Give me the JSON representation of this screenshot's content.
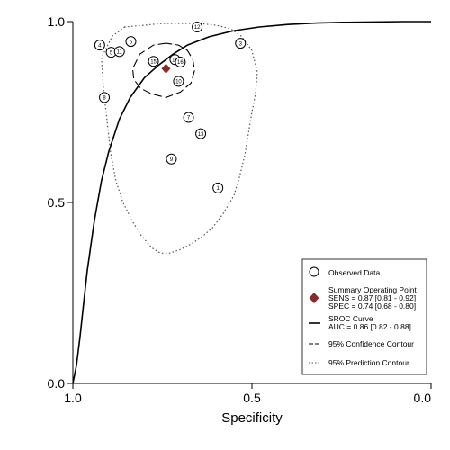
{
  "chart_data": {
    "type": "scatter",
    "xlabel": "Specificity",
    "ylabel": "",
    "x_axis_reversed": true,
    "xlim": [
      1.0,
      0.0
    ],
    "ylim": [
      0.0,
      1.0
    ],
    "x_ticks": [
      {
        "value": 1.0,
        "label": "1.0"
      },
      {
        "value": 0.5,
        "label": "0.5"
      },
      {
        "value": 0.0,
        "label": "0.0"
      }
    ],
    "y_ticks": [
      {
        "value": 0.0,
        "label": "0.0"
      },
      {
        "value": 0.5,
        "label": "0.5"
      },
      {
        "value": 1.0,
        "label": "1.0"
      }
    ],
    "grid": false,
    "legend_position": "bottom-right",
    "observed_data": [
      {
        "study": "1",
        "specificity": 0.595,
        "sensitivity": 0.54
      },
      {
        "study": "3",
        "specificity": 0.532,
        "sensitivity": 0.94
      },
      {
        "study": "4",
        "specificity": 0.925,
        "sensitivity": 0.935
      },
      {
        "study": "5",
        "specificity": 0.893,
        "sensitivity": 0.915
      },
      {
        "study": "6",
        "specificity": 0.838,
        "sensitivity": 0.945
      },
      {
        "study": "7",
        "specificity": 0.677,
        "sensitivity": 0.735
      },
      {
        "study": "8",
        "specificity": 0.912,
        "sensitivity": 0.79
      },
      {
        "study": "9",
        "specificity": 0.725,
        "sensitivity": 0.62
      },
      {
        "study": "10",
        "specificity": 0.705,
        "sensitivity": 0.835
      },
      {
        "study": "11",
        "specificity": 0.87,
        "sensitivity": 0.917
      },
      {
        "study": "12",
        "specificity": 0.653,
        "sensitivity": 0.985
      },
      {
        "study": "13",
        "specificity": 0.643,
        "sensitivity": 0.69
      },
      {
        "study": "14",
        "specificity": 0.715,
        "sensitivity": 0.895
      },
      {
        "study": "15",
        "specificity": 0.775,
        "sensitivity": 0.89
      },
      {
        "study": "16",
        "specificity": 0.7,
        "sensitivity": 0.888
      }
    ],
    "summary_point": {
      "specificity": 0.74,
      "sensitivity": 0.87,
      "color": "#8b2a2a"
    },
    "sroc_curve": {
      "specificity": [
        1.0,
        0.99,
        0.98,
        0.97,
        0.96,
        0.94,
        0.92,
        0.9,
        0.87,
        0.84,
        0.8,
        0.76,
        0.72,
        0.68,
        0.62,
        0.55,
        0.48,
        0.4,
        0.32,
        0.24,
        0.16,
        0.08,
        0.0
      ],
      "sensitivity": [
        0.0,
        0.05,
        0.13,
        0.22,
        0.31,
        0.45,
        0.56,
        0.64,
        0.73,
        0.79,
        0.845,
        0.88,
        0.91,
        0.935,
        0.958,
        0.975,
        0.985,
        0.992,
        0.996,
        0.998,
        0.999,
        1.0,
        1.0
      ]
    },
    "confidence_contour": {
      "specificity": [
        0.74,
        0.775,
        0.813,
        0.833,
        0.83,
        0.81,
        0.78,
        0.74,
        0.7,
        0.67,
        0.66,
        0.665,
        0.68,
        0.705,
        0.74
      ],
      "sensitivity": [
        0.94,
        0.935,
        0.91,
        0.87,
        0.84,
        0.815,
        0.8,
        0.79,
        0.805,
        0.83,
        0.865,
        0.895,
        0.92,
        0.935,
        0.94
      ]
    },
    "prediction_contour": {
      "specificity": [
        0.855,
        0.89,
        0.92,
        0.915,
        0.905,
        0.895,
        0.88,
        0.86,
        0.835,
        0.81,
        0.78,
        0.755,
        0.73,
        0.7,
        0.67,
        0.64,
        0.61,
        0.58,
        0.55,
        0.535,
        0.52,
        0.51,
        0.5,
        0.49,
        0.485,
        0.5,
        0.53,
        0.56,
        0.6,
        0.65,
        0.7,
        0.75,
        0.8,
        0.855
      ],
      "sensitivity": [
        0.985,
        0.96,
        0.9,
        0.82,
        0.73,
        0.64,
        0.56,
        0.5,
        0.45,
        0.41,
        0.375,
        0.36,
        0.36,
        0.37,
        0.385,
        0.405,
        0.43,
        0.47,
        0.52,
        0.57,
        0.63,
        0.69,
        0.75,
        0.8,
        0.86,
        0.92,
        0.96,
        0.98,
        0.99,
        0.995,
        0.995,
        0.995,
        0.99,
        0.985
      ]
    },
    "legend": {
      "observed": "Observed Data",
      "summary_title": "Summary Operating Point",
      "summary_sens": "SENS = 0.87 [0.81 - 0.92]",
      "summary_spec": "SPEC = 0.74 [0.68 - 0.80]",
      "sroc_title": "SROC Curve",
      "sroc_auc": "AUC = 0.86 [0.82 - 0.88]",
      "confidence": "95% Confidence Contour",
      "prediction": "95% Prediction Contour"
    }
  }
}
